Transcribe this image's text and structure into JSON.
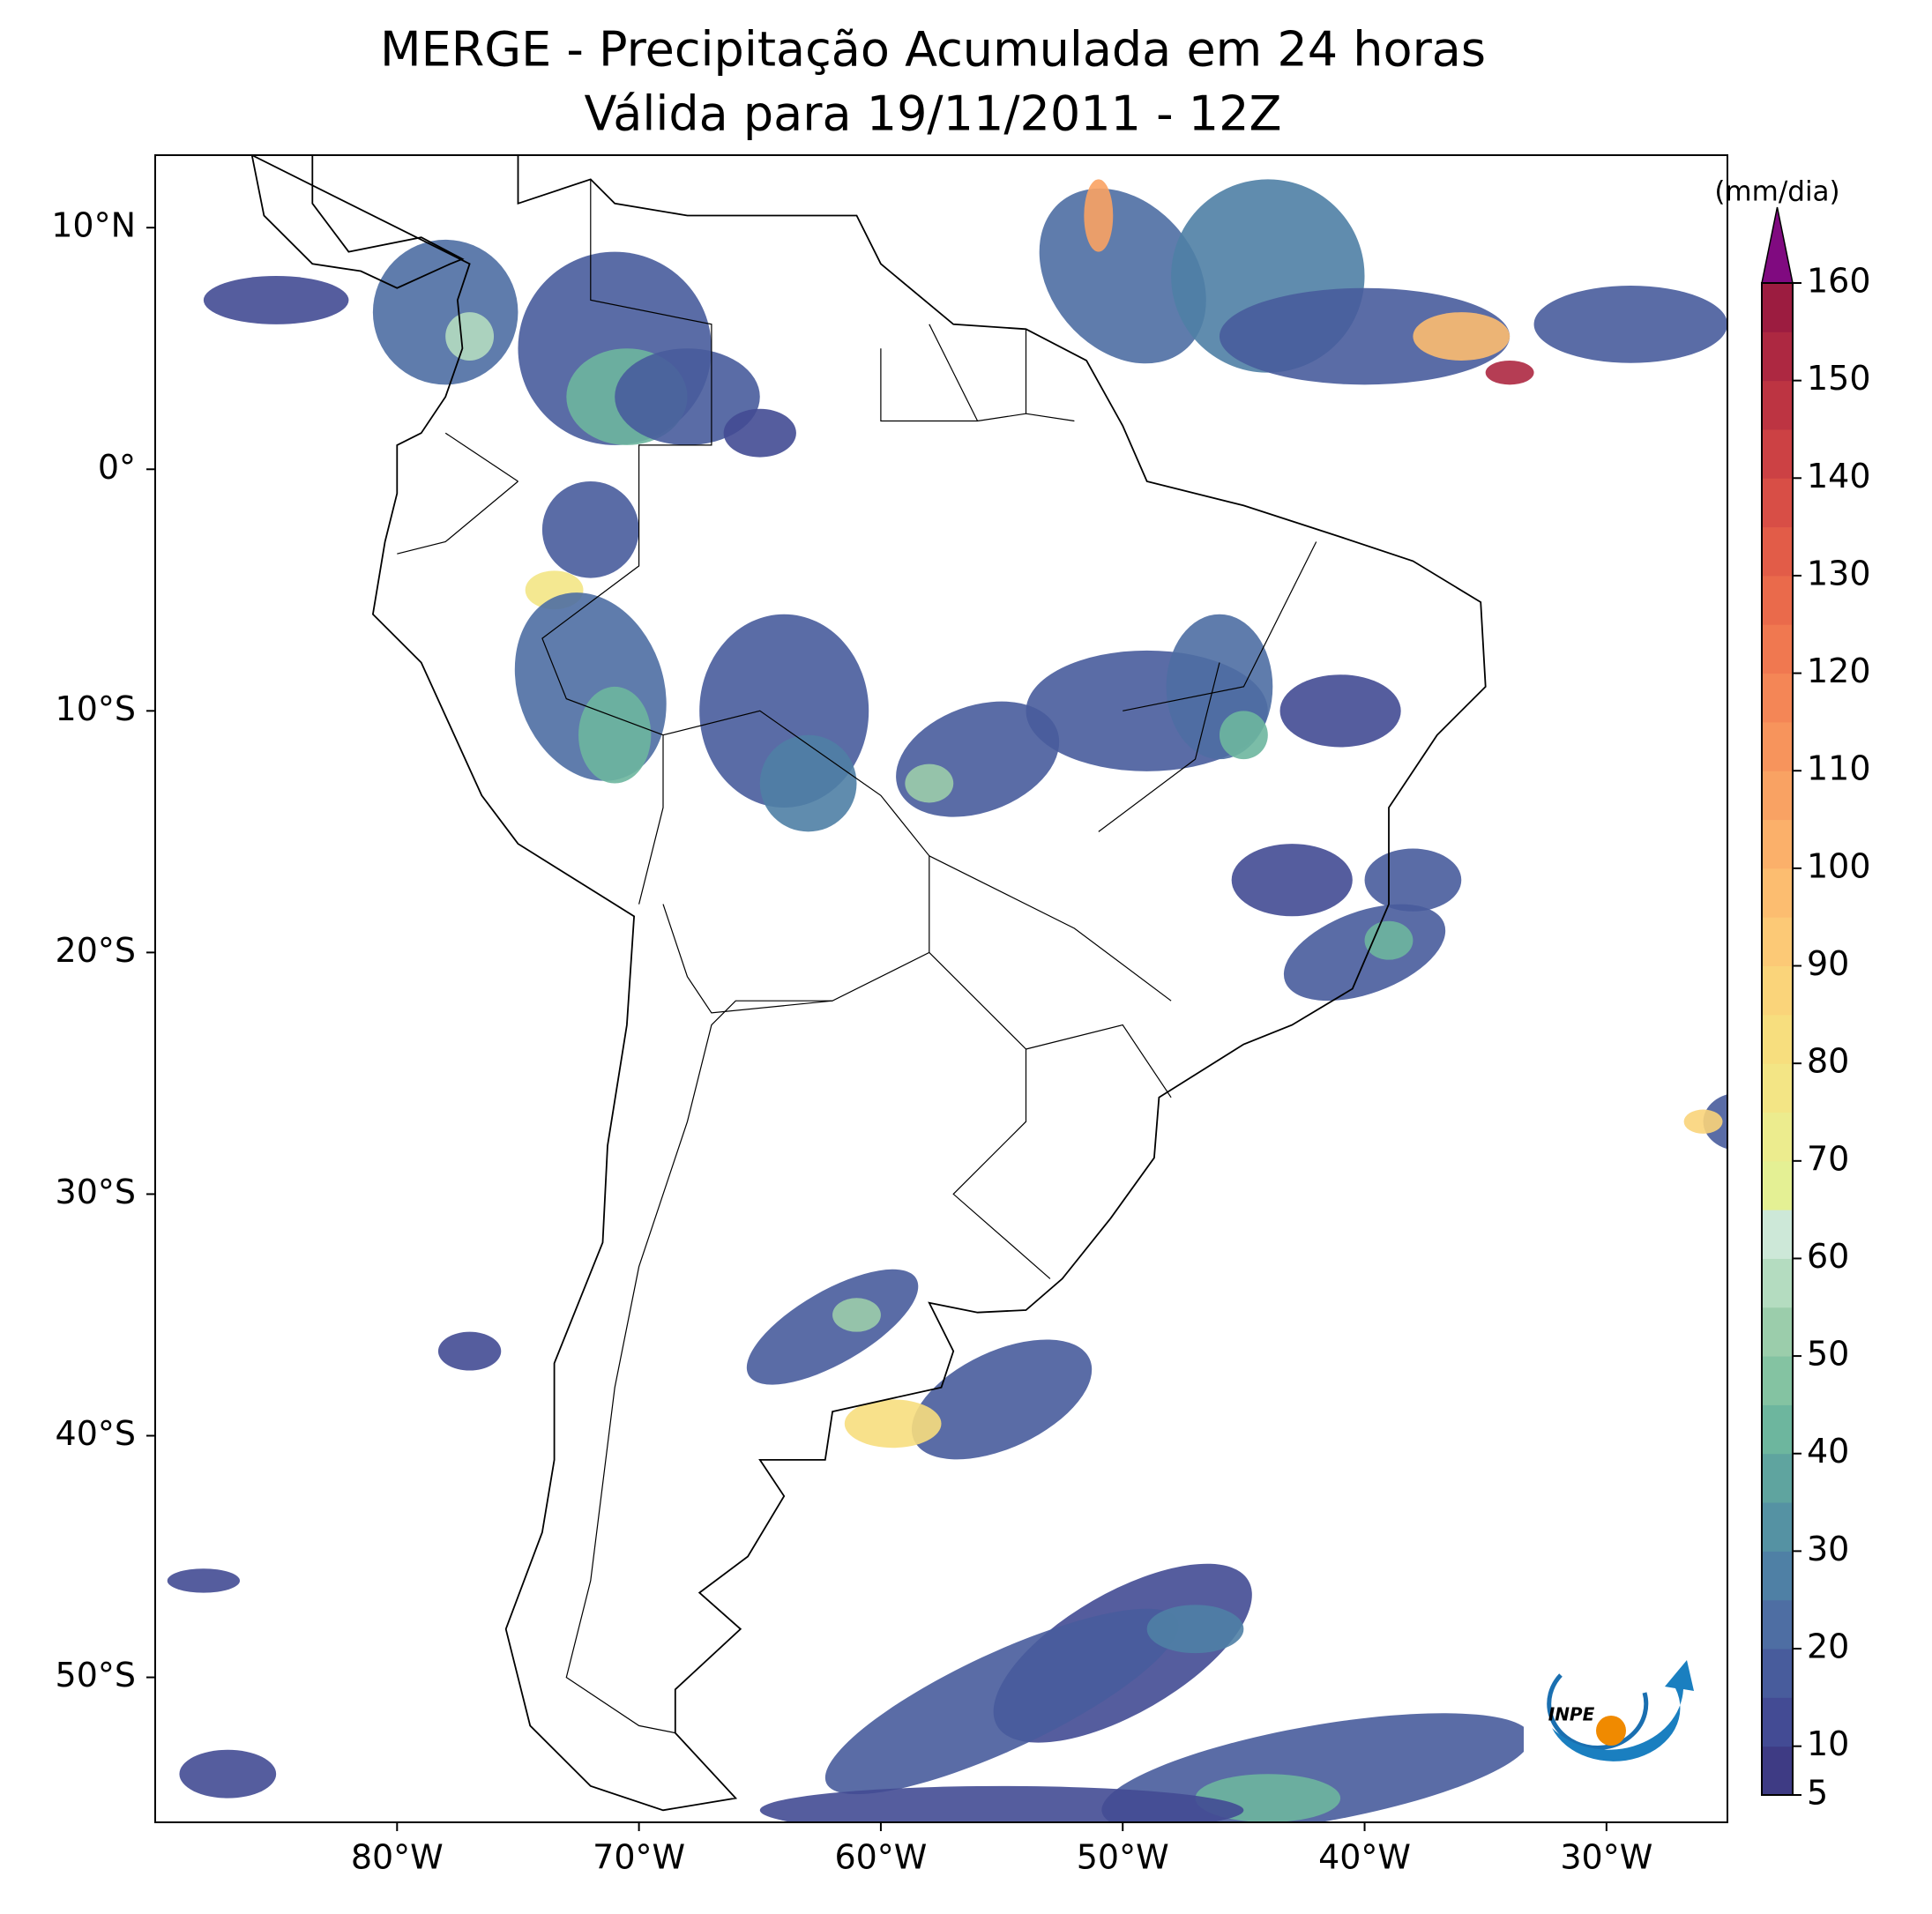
{
  "title": "MERGE - Precipitação Acumulada em 24 horas",
  "subtitle": "Válida para 19/11/2011 - 12Z",
  "map": {
    "xlim": [
      -90,
      -25
    ],
    "ylim": [
      -56,
      13
    ],
    "xticks": [
      {
        "value": -80,
        "label": "80°W"
      },
      {
        "value": -70,
        "label": "70°W"
      },
      {
        "value": -60,
        "label": "60°W"
      },
      {
        "value": -50,
        "label": "50°W"
      },
      {
        "value": -40,
        "label": "40°W"
      },
      {
        "value": -30,
        "label": "30°W"
      }
    ],
    "yticks": [
      {
        "value": 10,
        "label": "10°N"
      },
      {
        "value": 0,
        "label": "0°"
      },
      {
        "value": -10,
        "label": "10°S"
      },
      {
        "value": -20,
        "label": "20°S"
      },
      {
        "value": -30,
        "label": "30°S"
      },
      {
        "value": -40,
        "label": "40°S"
      },
      {
        "value": -50,
        "label": "50°S"
      }
    ]
  },
  "colorbar": {
    "label": "(mm/dia)",
    "levels": [
      5,
      10,
      15,
      20,
      25,
      30,
      35,
      40,
      45,
      50,
      55,
      60,
      65,
      70,
      75,
      80,
      85,
      90,
      95,
      100,
      105,
      110,
      115,
      120,
      125,
      130,
      135,
      140,
      145,
      150,
      155,
      160
    ],
    "colors": [
      "#3e3b84",
      "#434b94",
      "#485c9c",
      "#4e6ea3",
      "#4f80a5",
      "#5592a3",
      "#5fa49f",
      "#6db69e",
      "#84c3a2",
      "#9bcdab",
      "#b4dcc0",
      "#cde8d8",
      "#e4f094",
      "#ecec8e",
      "#f3e585",
      "#f7de7e",
      "#fad47a",
      "#fcc976",
      "#fcbd70",
      "#fbb06a",
      "#f9a263",
      "#f7945c",
      "#f48656",
      "#f07850",
      "#ea6a4b",
      "#e25c48",
      "#d84e46",
      "#cc4144",
      "#bd3442",
      "#ad2841",
      "#9c1c40"
    ],
    "extend_color": "#800a80",
    "ticks": [
      5,
      10,
      20,
      30,
      40,
      50,
      60,
      70,
      80,
      90,
      100,
      110,
      120,
      130,
      140,
      150,
      160
    ]
  },
  "logo_text": "INPE"
}
